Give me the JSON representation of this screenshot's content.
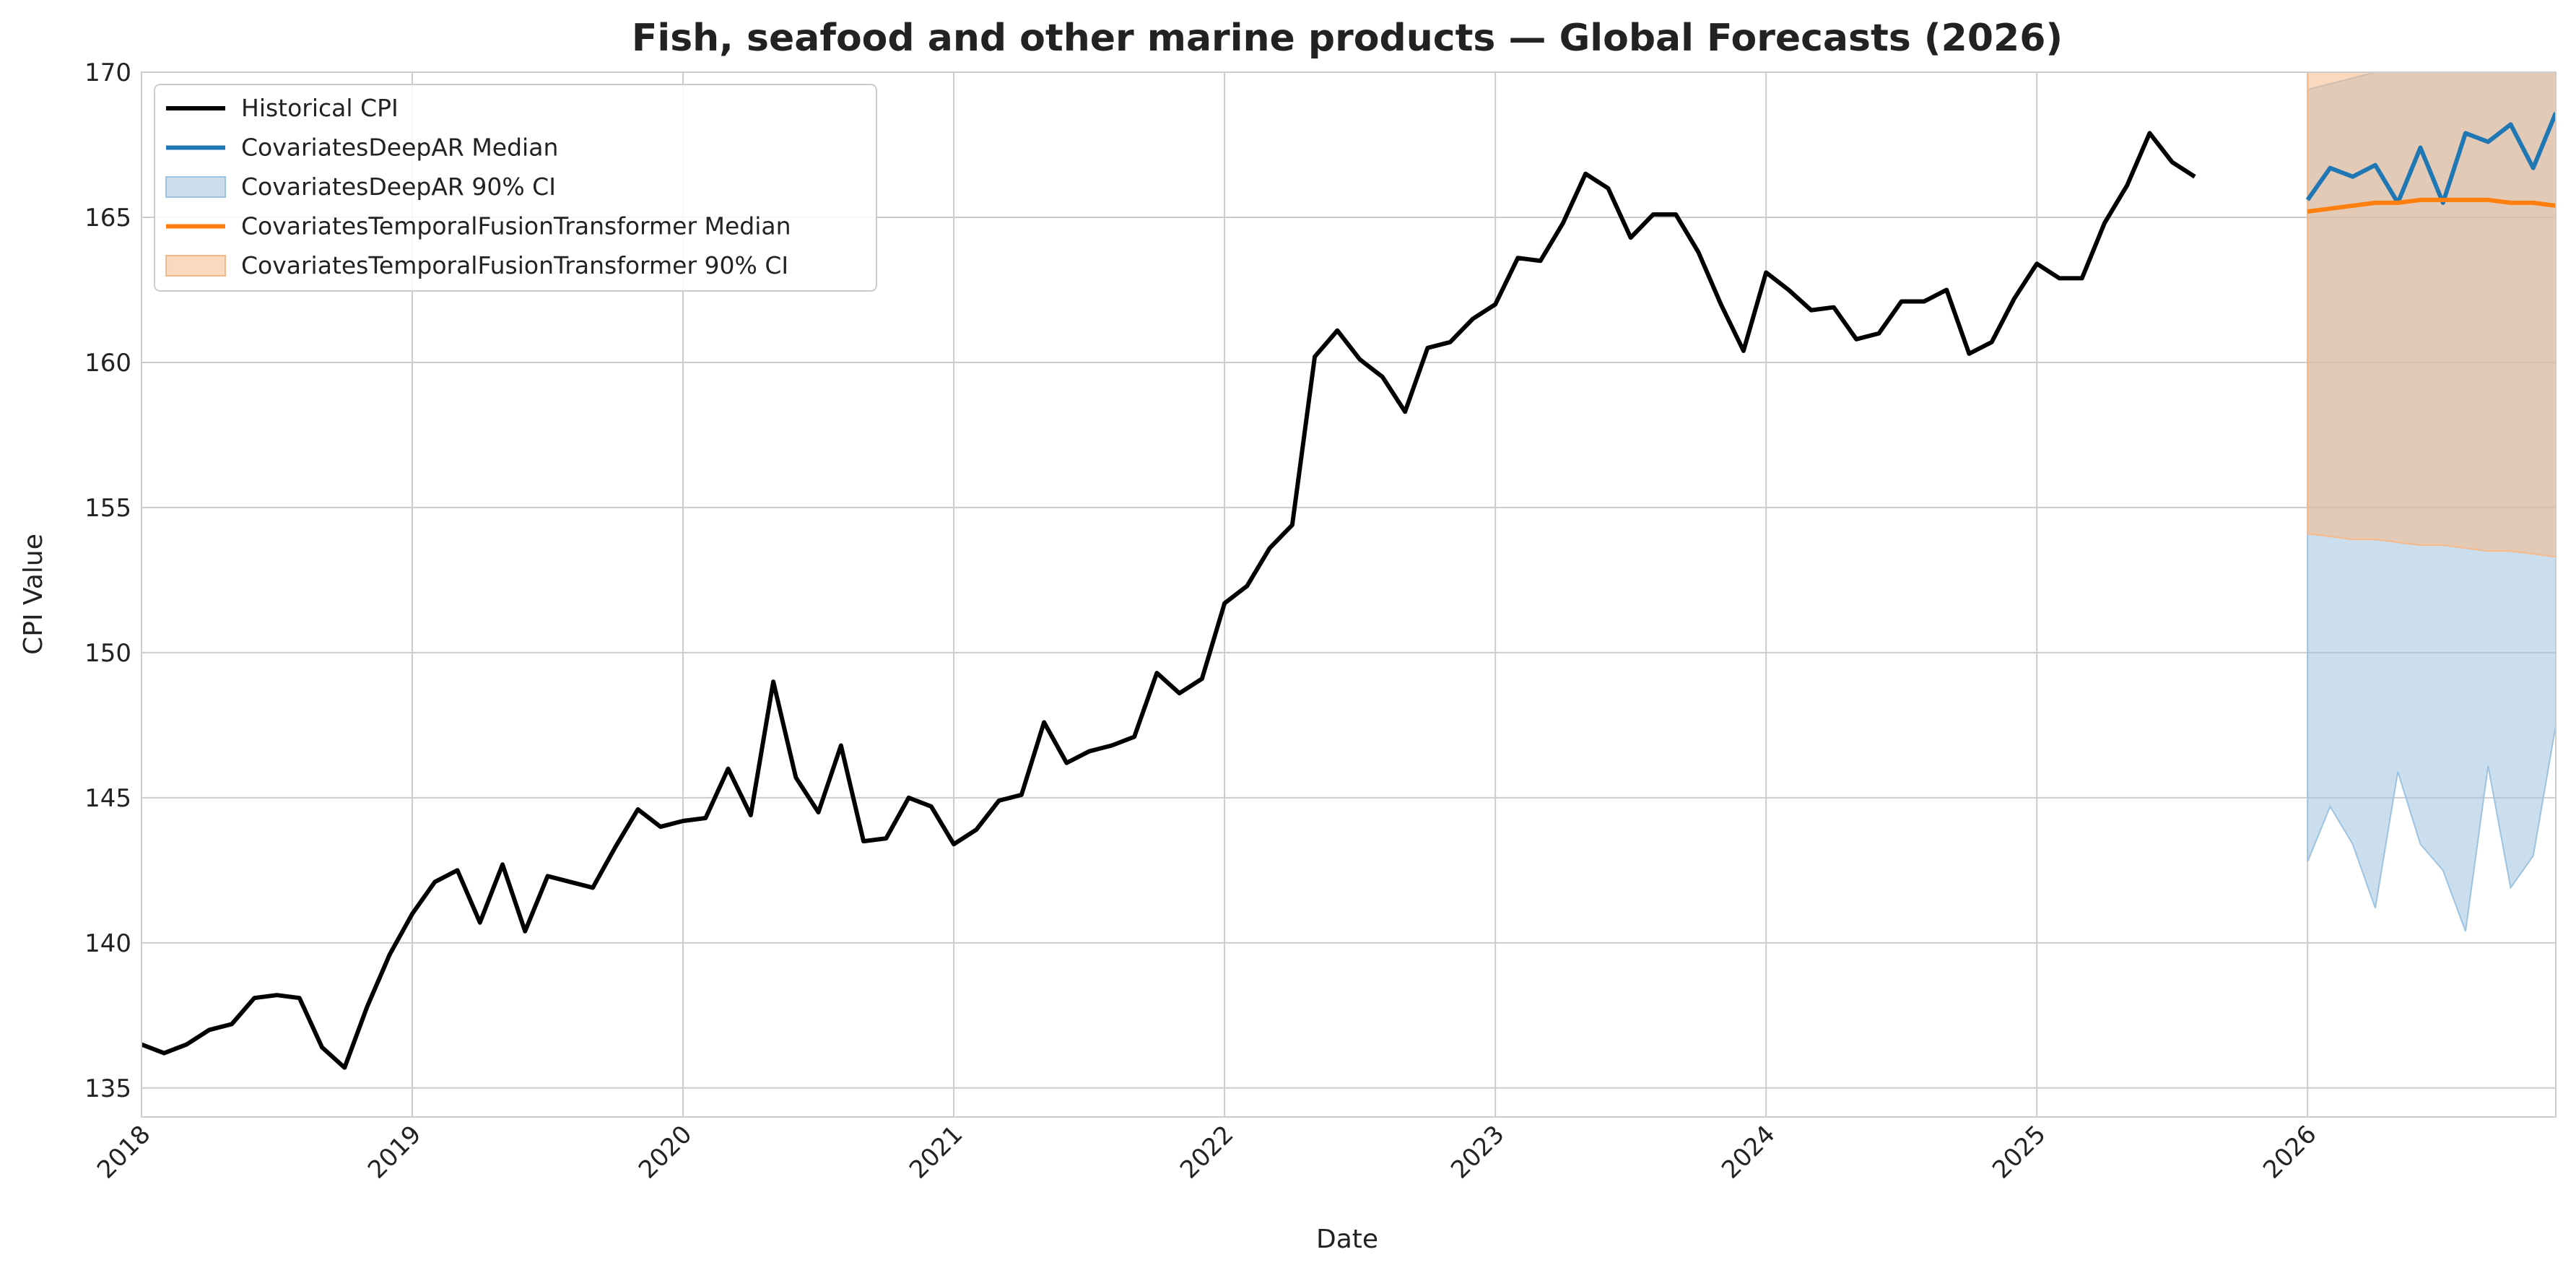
{
  "chart_data": {
    "type": "line",
    "title": "Fish, seafood and other marine products — Global Forecasts (2026)",
    "xlabel": "Date",
    "ylabel": "CPI Value",
    "xlim": [
      "2018-01",
      "2026-12"
    ],
    "ylim": [
      134,
      170
    ],
    "x_ticks": [
      "2018",
      "2019",
      "2020",
      "2021",
      "2022",
      "2023",
      "2024",
      "2025",
      "2026"
    ],
    "y_ticks": [
      135,
      140,
      145,
      150,
      155,
      160,
      165,
      170
    ],
    "grid": true,
    "legend_position": "upper-left",
    "colors": {
      "historical": "#000000",
      "deepar": "#1f77b4",
      "deepar_ci": "#9ec3e0",
      "tft": "#ff7f0e",
      "tft_ci": "#f5b98a"
    },
    "legend": [
      {
        "label": "Historical CPI",
        "kind": "line",
        "key": "historical"
      },
      {
        "label": "CovariatesDeepAR Median",
        "kind": "line",
        "key": "deepar"
      },
      {
        "label": "CovariatesDeepAR 90% CI",
        "kind": "band",
        "key": "deepar_ci"
      },
      {
        "label": "CovariatesTemporalFusionTransformer Median",
        "kind": "line",
        "key": "tft"
      },
      {
        "label": "CovariatesTemporalFusionTransformer 90% CI",
        "kind": "band",
        "key": "tft_ci"
      }
    ],
    "historical": {
      "name": "Historical CPI",
      "start": "2018-01",
      "values": [
        136.5,
        136.2,
        136.5,
        137.0,
        137.2,
        138.1,
        138.2,
        138.1,
        136.4,
        135.7,
        137.8,
        139.6,
        141.0,
        142.1,
        142.5,
        140.7,
        142.7,
        140.4,
        142.3,
        142.1,
        141.9,
        143.3,
        144.6,
        144.0,
        144.2,
        144.3,
        146.0,
        144.4,
        149.0,
        145.7,
        144.5,
        146.8,
        143.5,
        143.6,
        145.0,
        144.7,
        143.4,
        143.9,
        144.9,
        145.1,
        147.6,
        146.2,
        146.6,
        146.8,
        147.1,
        149.3,
        148.6,
        149.1,
        151.7,
        152.3,
        153.6,
        154.4,
        160.2,
        161.1,
        160.1,
        159.5,
        158.3,
        160.5,
        160.7,
        161.5,
        162.0,
        163.6,
        163.5,
        164.8,
        166.5,
        166.0,
        164.3,
        165.1,
        165.1,
        163.8,
        162.0,
        160.4,
        163.1,
        162.5,
        161.8,
        161.9,
        160.8,
        161.0,
        162.1,
        162.1,
        162.5,
        160.3,
        160.7,
        162.2,
        163.4,
        162.9,
        162.9,
        164.8,
        166.1,
        167.9,
        166.9,
        166.4
      ]
    },
    "forecast_months": [
      "2026-01",
      "2026-02",
      "2026-03",
      "2026-04",
      "2026-05",
      "2026-06",
      "2026-07",
      "2026-08",
      "2026-09",
      "2026-10",
      "2026-11",
      "2026-12"
    ],
    "deepar": {
      "name": "CovariatesDeepAR Median",
      "median": [
        165.6,
        166.7,
        166.4,
        166.8,
        165.5,
        167.4,
        165.5,
        167.9,
        167.6,
        168.2,
        166.7,
        168.6
      ],
      "lower": [
        142.8,
        144.7,
        143.4,
        141.2,
        145.9,
        143.4,
        142.5,
        140.4,
        146.1,
        141.9,
        143.0,
        147.5
      ],
      "upper": [
        169.4,
        169.6,
        169.8,
        170.0,
        170.2,
        170.4,
        170.6,
        170.8,
        171.0,
        171.2,
        171.4,
        171.6
      ]
    },
    "tft": {
      "name": "CovariatesTemporalFusionTransformer Median",
      "median": [
        165.2,
        165.3,
        165.4,
        165.5,
        165.5,
        165.6,
        165.6,
        165.6,
        165.6,
        165.5,
        165.5,
        165.4
      ],
      "lower": [
        154.1,
        154.0,
        153.9,
        153.9,
        153.8,
        153.7,
        153.7,
        153.6,
        153.5,
        153.5,
        153.4,
        153.3
      ],
      "upper": [
        174.0,
        174.0,
        174.0,
        174.0,
        174.0,
        174.0,
        174.0,
        174.0,
        174.0,
        174.0,
        174.0,
        174.0
      ]
    }
  }
}
